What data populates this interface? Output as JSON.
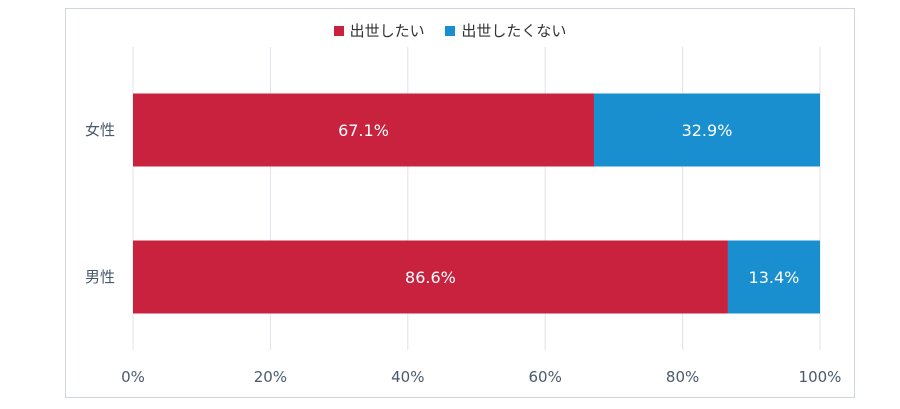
{
  "chart_data": {
    "type": "bar",
    "orientation": "horizontal",
    "stacked": true,
    "categories": [
      "女性",
      "男性"
    ],
    "series": [
      {
        "name": "出世したい",
        "values": [
          67.1,
          86.6
        ],
        "color": "#c8223f",
        "labels": [
          "67.1%",
          "86.6%"
        ]
      },
      {
        "name": "出世したくない",
        "values": [
          32.9,
          13.4
        ],
        "color": "#1a8fcf",
        "labels": [
          "32.9%",
          "13.4%"
        ]
      }
    ],
    "xlim": [
      0,
      100
    ],
    "xticks": [
      0,
      20,
      40,
      60,
      80,
      100
    ],
    "xtick_labels": [
      "0%",
      "20%",
      "40%",
      "60%",
      "80%",
      "100%"
    ],
    "grid": true,
    "legend_position": "top"
  }
}
